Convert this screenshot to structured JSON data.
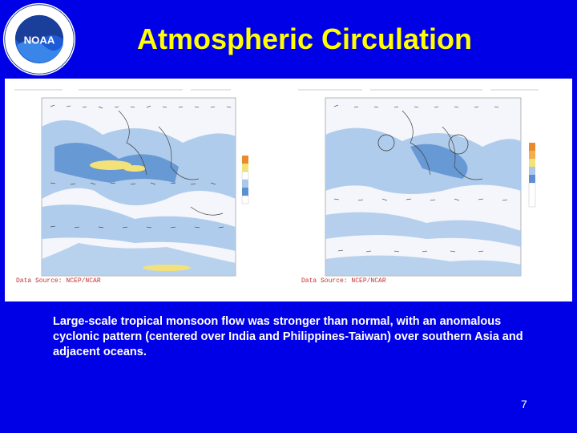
{
  "slide": {
    "title": "Atmospheric Circulation",
    "caption": "Large-scale tropical monsoon flow was stronger than normal, with an anomalous cyclonic pattern (centered over India and Philippines-Taiwan) over southern Asia and adjacent oceans.",
    "page_number": "7"
  },
  "logo": {
    "name": "NOAA",
    "ring_text": "NATIONAL OCEANIC AND ATMOSPHERIC ADMINISTRATION · U.S. DEPARTMENT OF COMMERCE"
  },
  "colors": {
    "background": "#0000e6",
    "title": "#ffff00",
    "caption": "#ffffff",
    "map_blue_light": "#a9c8ea",
    "map_blue_dark": "#5b8fd0",
    "map_yellow": "#f3e27a"
  },
  "maps": [
    {
      "id": "left",
      "source_label": "Data Source: NCEP/NCAR"
    },
    {
      "id": "right",
      "source_label": "Data Source: NCEP/NCAR"
    }
  ]
}
